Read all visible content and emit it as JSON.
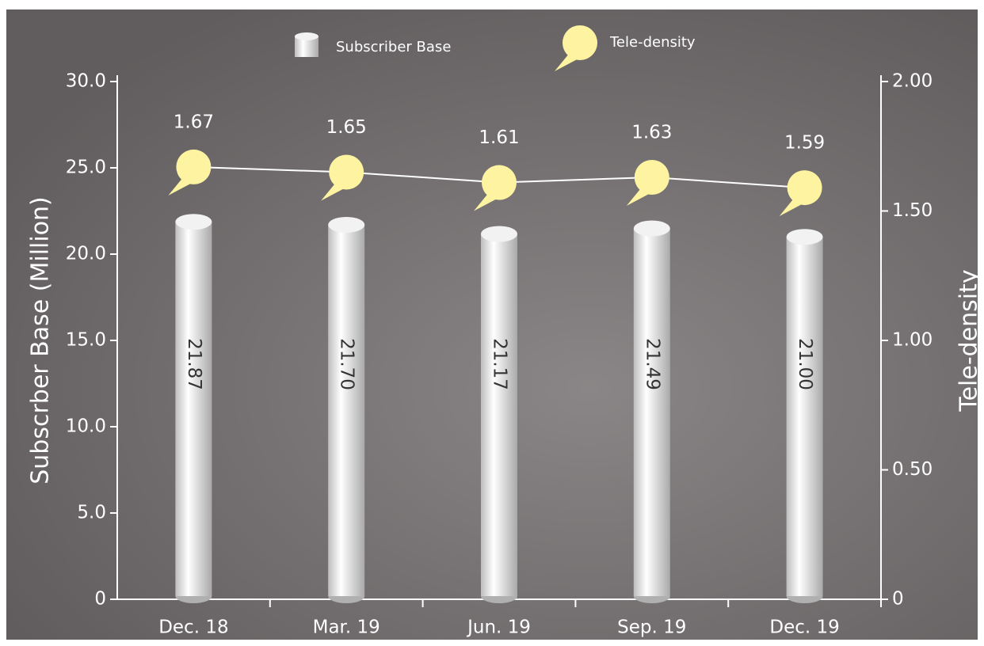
{
  "chart_data": {
    "type": "bar",
    "ylabel": "Subscrber Base (Million)",
    "y2label": "Tele-density",
    "categories": [
      "Dec. 18",
      "Mar. 19",
      "Jun. 19",
      "Sep. 19",
      "Dec. 19"
    ],
    "series": [
      {
        "name": "Subscriber Base",
        "type": "bar",
        "color": "#f2f2f2",
        "values": [
          21.87,
          21.7,
          21.17,
          21.49,
          21.0
        ],
        "value_labels": [
          "21.87",
          "21.70",
          "21.17",
          "21.49",
          "21.00"
        ]
      },
      {
        "name": "Tele-density",
        "type": "line",
        "axis": "y2",
        "color": "#fdf3a0",
        "values": [
          1.67,
          1.65,
          1.61,
          1.63,
          1.59
        ]
      }
    ],
    "ylim": [
      0,
      30
    ],
    "yticks": [
      0,
      {
        "value": 5,
        "label": "5.0"
      },
      {
        "value": 10,
        "label": "10.0"
      },
      {
        "value": 15,
        "label": "15.0"
      },
      {
        "value": 20,
        "label": "20.0"
      },
      {
        "value": 25,
        "label": "25.0"
      },
      {
        "value": 30,
        "label": "30.0"
      }
    ],
    "y2lim": [
      0,
      2
    ],
    "y2ticks": [
      0,
      {
        "value": 0.5,
        "label": "0.50"
      },
      {
        "value": 1,
        "label": "1.00"
      },
      {
        "value": 1.5,
        "label": "1.50"
      },
      {
        "value": 2,
        "label": "2.00"
      }
    ]
  }
}
